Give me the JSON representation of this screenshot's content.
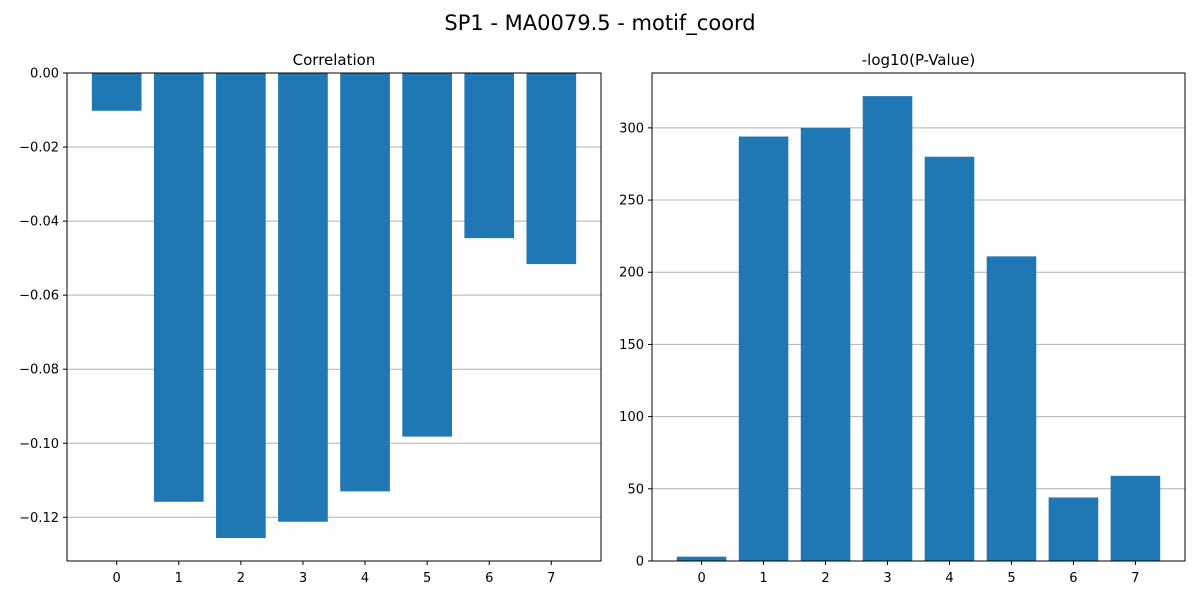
{
  "figure": {
    "suptitle": "SP1 - MA0079.5 - motif_coord"
  },
  "chart_data": [
    {
      "type": "bar",
      "title": "Correlation",
      "xlabel": "",
      "ylabel": "",
      "categories": [
        "0",
        "1",
        "2",
        "3",
        "4",
        "5",
        "6",
        "7"
      ],
      "values": [
        -0.0102,
        -0.1158,
        -0.1256,
        -0.1212,
        -0.113,
        -0.0982,
        -0.0446,
        -0.0516
      ],
      "ylim": [
        -0.1318,
        0.0
      ],
      "yticks": [
        0.0,
        -0.02,
        -0.04,
        -0.06,
        -0.08,
        -0.1,
        -0.12
      ],
      "ytick_labels": [
        "0.00",
        "−0.02",
        "−0.04",
        "−0.06",
        "−0.08",
        "−0.10",
        "−0.12"
      ],
      "grid": "y",
      "bar_color": "#1f77b4"
    },
    {
      "type": "bar",
      "title": "-log10(P-Value)",
      "xlabel": "",
      "ylabel": "",
      "categories": [
        "0",
        "1",
        "2",
        "3",
        "4",
        "5",
        "6",
        "7"
      ],
      "values": [
        3,
        294,
        300,
        322,
        280,
        211,
        44,
        59
      ],
      "ylim": [
        0,
        338
      ],
      "yticks": [
        0,
        50,
        100,
        150,
        200,
        250,
        300
      ],
      "ytick_labels": [
        "0",
        "50",
        "100",
        "150",
        "200",
        "250",
        "300"
      ],
      "grid": "y",
      "bar_color": "#1f77b4"
    }
  ]
}
